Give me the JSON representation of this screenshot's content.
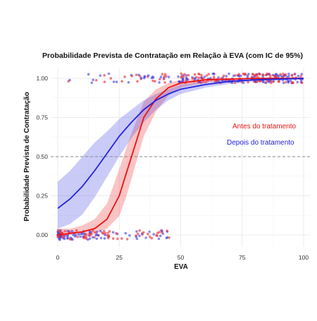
{
  "chart_data": {
    "type": "scatter",
    "title": "Probabilidade Prevista de Contratação em Relação à EVA (com IC de 95%)",
    "xlabel": "EVA",
    "ylabel": "Probabilidade Prevista de Contratação",
    "xlim": [
      0,
      100
    ],
    "ylim": [
      0,
      1
    ],
    "x_ticks": [
      0,
      25,
      50,
      75,
      100
    ],
    "y_ticks": [
      0.0,
      0.25,
      0.5,
      0.75,
      1.0
    ],
    "x_tick_labels": [
      "0",
      "25",
      "50",
      "75",
      "100"
    ],
    "y_tick_labels": [
      "0.00",
      "0.25",
      "0.50",
      "0.75",
      "1.00"
    ],
    "grid": true,
    "reference_line": {
      "y": 0.5,
      "style": "dashed",
      "color": "#888888"
    },
    "legend_position": "right-center",
    "series": [
      {
        "name": "Antes do tratamento",
        "color": "#ee1111",
        "curve_x": [
          0,
          5,
          10,
          15,
          20,
          25,
          28,
          30,
          32,
          35,
          40,
          45,
          50,
          60,
          70,
          80,
          90,
          100
        ],
        "curve_y": [
          0.0,
          0.01,
          0.02,
          0.04,
          0.1,
          0.25,
          0.4,
          0.5,
          0.6,
          0.75,
          0.87,
          0.94,
          0.97,
          0.99,
          0.995,
          1.0,
          1.0,
          1.0
        ],
        "ci_lower": [
          0.0,
          0.0,
          0.0,
          0.01,
          0.04,
          0.12,
          0.25,
          0.36,
          0.47,
          0.63,
          0.79,
          0.89,
          0.94,
          0.975,
          0.985,
          0.99,
          0.995,
          0.995
        ],
        "ci_upper": [
          0.04,
          0.04,
          0.06,
          0.1,
          0.2,
          0.42,
          0.56,
          0.65,
          0.73,
          0.85,
          0.93,
          0.97,
          0.99,
          0.998,
          1.0,
          1.0,
          1.0,
          1.0
        ]
      },
      {
        "name": "Depois do tratamento",
        "color": "#2222dd",
        "curve_x": [
          0,
          5,
          10,
          15,
          20,
          25,
          30,
          35,
          40,
          45,
          50,
          60,
          70,
          80,
          90,
          100
        ],
        "curve_y": [
          0.17,
          0.23,
          0.31,
          0.41,
          0.52,
          0.63,
          0.72,
          0.8,
          0.86,
          0.9,
          0.93,
          0.96,
          0.98,
          0.99,
          0.995,
          1.0
        ],
        "ci_lower": [
          0.04,
          0.07,
          0.13,
          0.24,
          0.37,
          0.5,
          0.62,
          0.72,
          0.8,
          0.86,
          0.9,
          0.94,
          0.965,
          0.98,
          0.985,
          0.99
        ],
        "ci_upper": [
          0.34,
          0.41,
          0.5,
          0.59,
          0.66,
          0.74,
          0.8,
          0.86,
          0.9,
          0.93,
          0.96,
          0.98,
          0.99,
          1.0,
          1.0,
          1.0
        ]
      }
    ],
    "points": {
      "note_range_low": [
        0,
        46
      ],
      "note_range_high": [
        0,
        100
      ]
    }
  }
}
